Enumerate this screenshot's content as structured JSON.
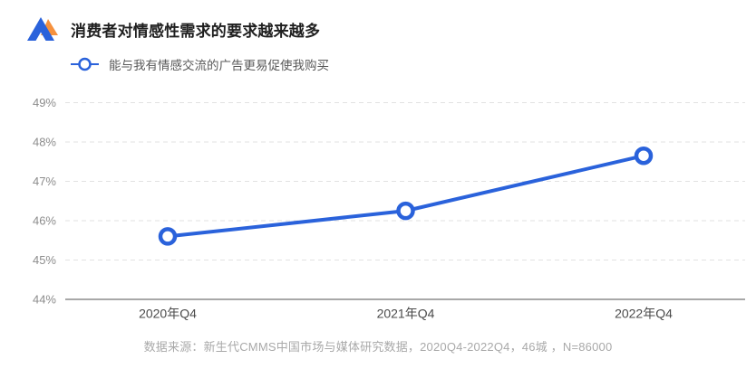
{
  "header": {
    "title": "消费者对情感性需求的要求越来越多"
  },
  "legend": {
    "label": "能与我有情感交流的广告更易促使我购买"
  },
  "footer": {
    "source": "数据来源：新生代CMMS中国市场与媒体研究数据，2020Q4-2022Q4，46城 ，N=86000"
  },
  "colors": {
    "accent_blue": "#2a62db",
    "logo_blue": "#2a62db",
    "logo_orange": "#f6913d",
    "grid_line": "#e2e2e2",
    "axis_line": "#525252",
    "y_label": "#8c8c8c",
    "x_label": "#4a4a4a",
    "marker_fill": "#ffffff"
  },
  "chart_data": {
    "type": "line",
    "title": "消费者对情感性需求的要求越来越多",
    "categories": [
      "2020年Q4",
      "2021年Q4",
      "2022年Q4"
    ],
    "series": [
      {
        "name": "能与我有情感交流的广告更易促使我购买",
        "values": [
          45.6,
          46.25,
          47.65
        ]
      }
    ],
    "xlabel": "",
    "ylabel": "",
    "ylim": [
      44,
      49
    ],
    "y_tick_step": 1,
    "y_tick_labels": [
      "44%",
      "45%",
      "46%",
      "47%",
      "48%",
      "49%"
    ],
    "y_tick_format": "percent",
    "grid": "horizontal-dashed",
    "legend_position": "top-left",
    "marker": "hollow-circle",
    "line_width": 4
  }
}
